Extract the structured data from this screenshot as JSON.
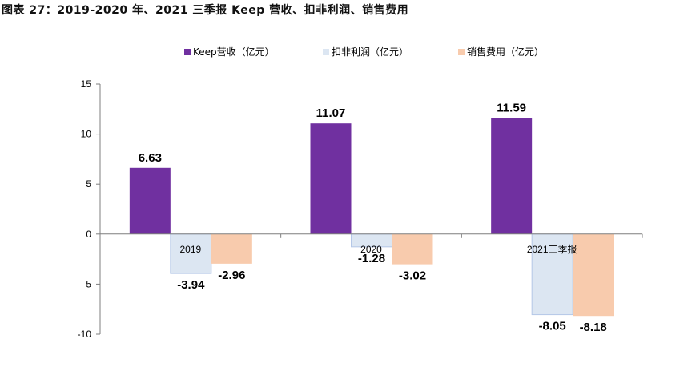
{
  "header": {
    "title": "图表 27：2019-2020 年、2021 三季报 Keep 营收、扣非利润、销售费用"
  },
  "colors": {
    "revenue": "#7030A0",
    "profit": "#DCE6F2",
    "profit_border": "#B4C7E7",
    "sales": "#F8CBAD"
  },
  "chart_data": {
    "type": "bar",
    "categories": [
      "2019",
      "2020",
      "2021三季报"
    ],
    "series": [
      {
        "name": "Keep营收（亿元）",
        "values": [
          6.63,
          11.07,
          11.59
        ],
        "labels": [
          "6.63",
          "11.07",
          "11.59"
        ]
      },
      {
        "name": "扣非利润（亿元）",
        "values": [
          -3.94,
          -1.28,
          -8.05
        ],
        "labels": [
          "-3.94",
          "-1.28",
          "-8.05"
        ]
      },
      {
        "name": "销售费用（亿元）",
        "values": [
          -2.96,
          -3.02,
          -8.18
        ],
        "labels": [
          "-2.96",
          "-3.02",
          "-8.18"
        ]
      }
    ],
    "ylim": [
      -10,
      15
    ],
    "yticks": [
      15,
      10,
      5,
      0,
      -5,
      -10
    ],
    "legend": "top",
    "grid": false
  }
}
